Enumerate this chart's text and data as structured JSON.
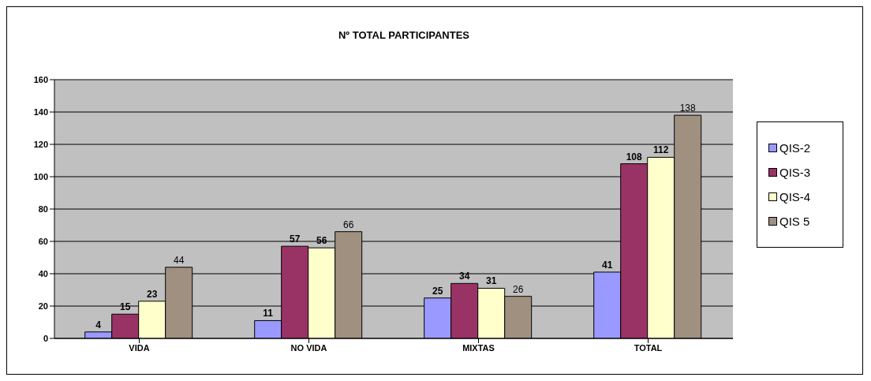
{
  "chart_data": {
    "type": "bar",
    "title": "Nº TOTAL PARTICIPANTES",
    "categories": [
      "VIDA",
      "NO VIDA",
      "MIXTAS",
      "TOTAL"
    ],
    "series": [
      {
        "name": "QIS-2",
        "color": "#9999ff",
        "values": [
          4,
          11,
          25,
          41
        ]
      },
      {
        "name": "QIS-3",
        "color": "#993366",
        "values": [
          15,
          57,
          34,
          108
        ]
      },
      {
        "name": "QIS-4",
        "color": "#ffffcc",
        "values": [
          23,
          56,
          31,
          112
        ]
      },
      {
        "name": "QIS 5",
        "color": "#a09080",
        "values": [
          44,
          66,
          26,
          138
        ]
      }
    ],
    "ylim": [
      0,
      160
    ],
    "yticks": [
      0,
      20,
      40,
      60,
      80,
      100,
      120,
      140,
      160
    ],
    "grid": "y",
    "legend": "right",
    "data_labels": true
  }
}
